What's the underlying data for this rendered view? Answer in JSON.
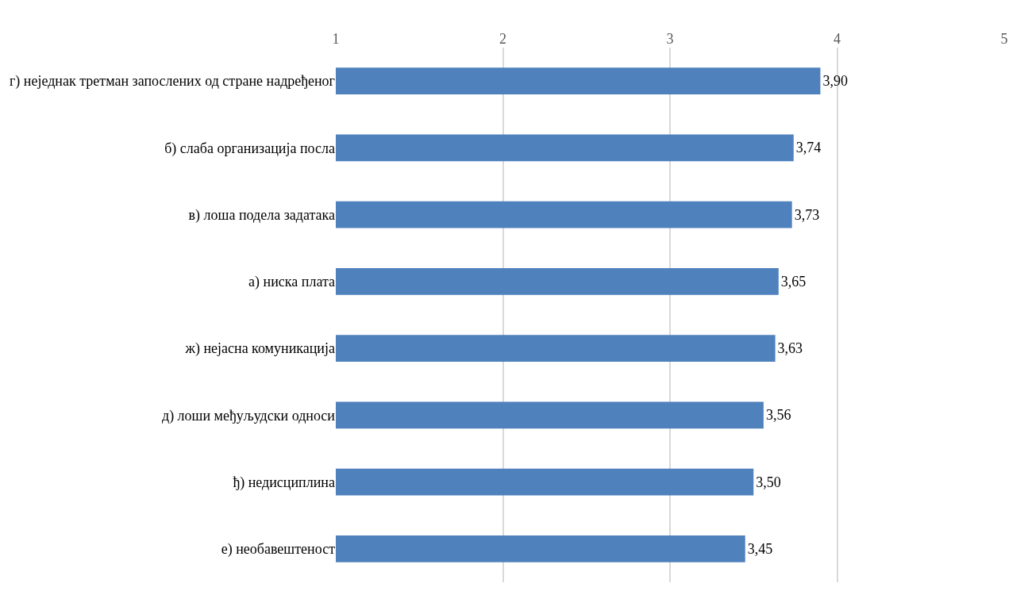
{
  "chart_data": {
    "type": "bar",
    "orientation": "horizontal",
    "categories": [
      "г) неједнак третман запослених од стране надређеног",
      "б) слаба организација посла",
      "в) лоша подела задатака",
      "а) ниска плата",
      "ж) нејасна комуникација",
      "д) лоши међуљудски односи",
      "ђ) недисциплина",
      "е) необавештеност"
    ],
    "values": [
      3.9,
      3.74,
      3.73,
      3.65,
      3.63,
      3.56,
      3.5,
      3.45
    ],
    "value_labels": [
      "3,90",
      "3,74",
      "3,73",
      "3,65",
      "3,63",
      "3,56",
      "3,50",
      "3,45"
    ],
    "color": "#4f81bd",
    "xlim": [
      1,
      5
    ],
    "xticks": [
      1,
      2,
      3,
      4,
      5
    ],
    "grid": "x",
    "legend": false
  }
}
